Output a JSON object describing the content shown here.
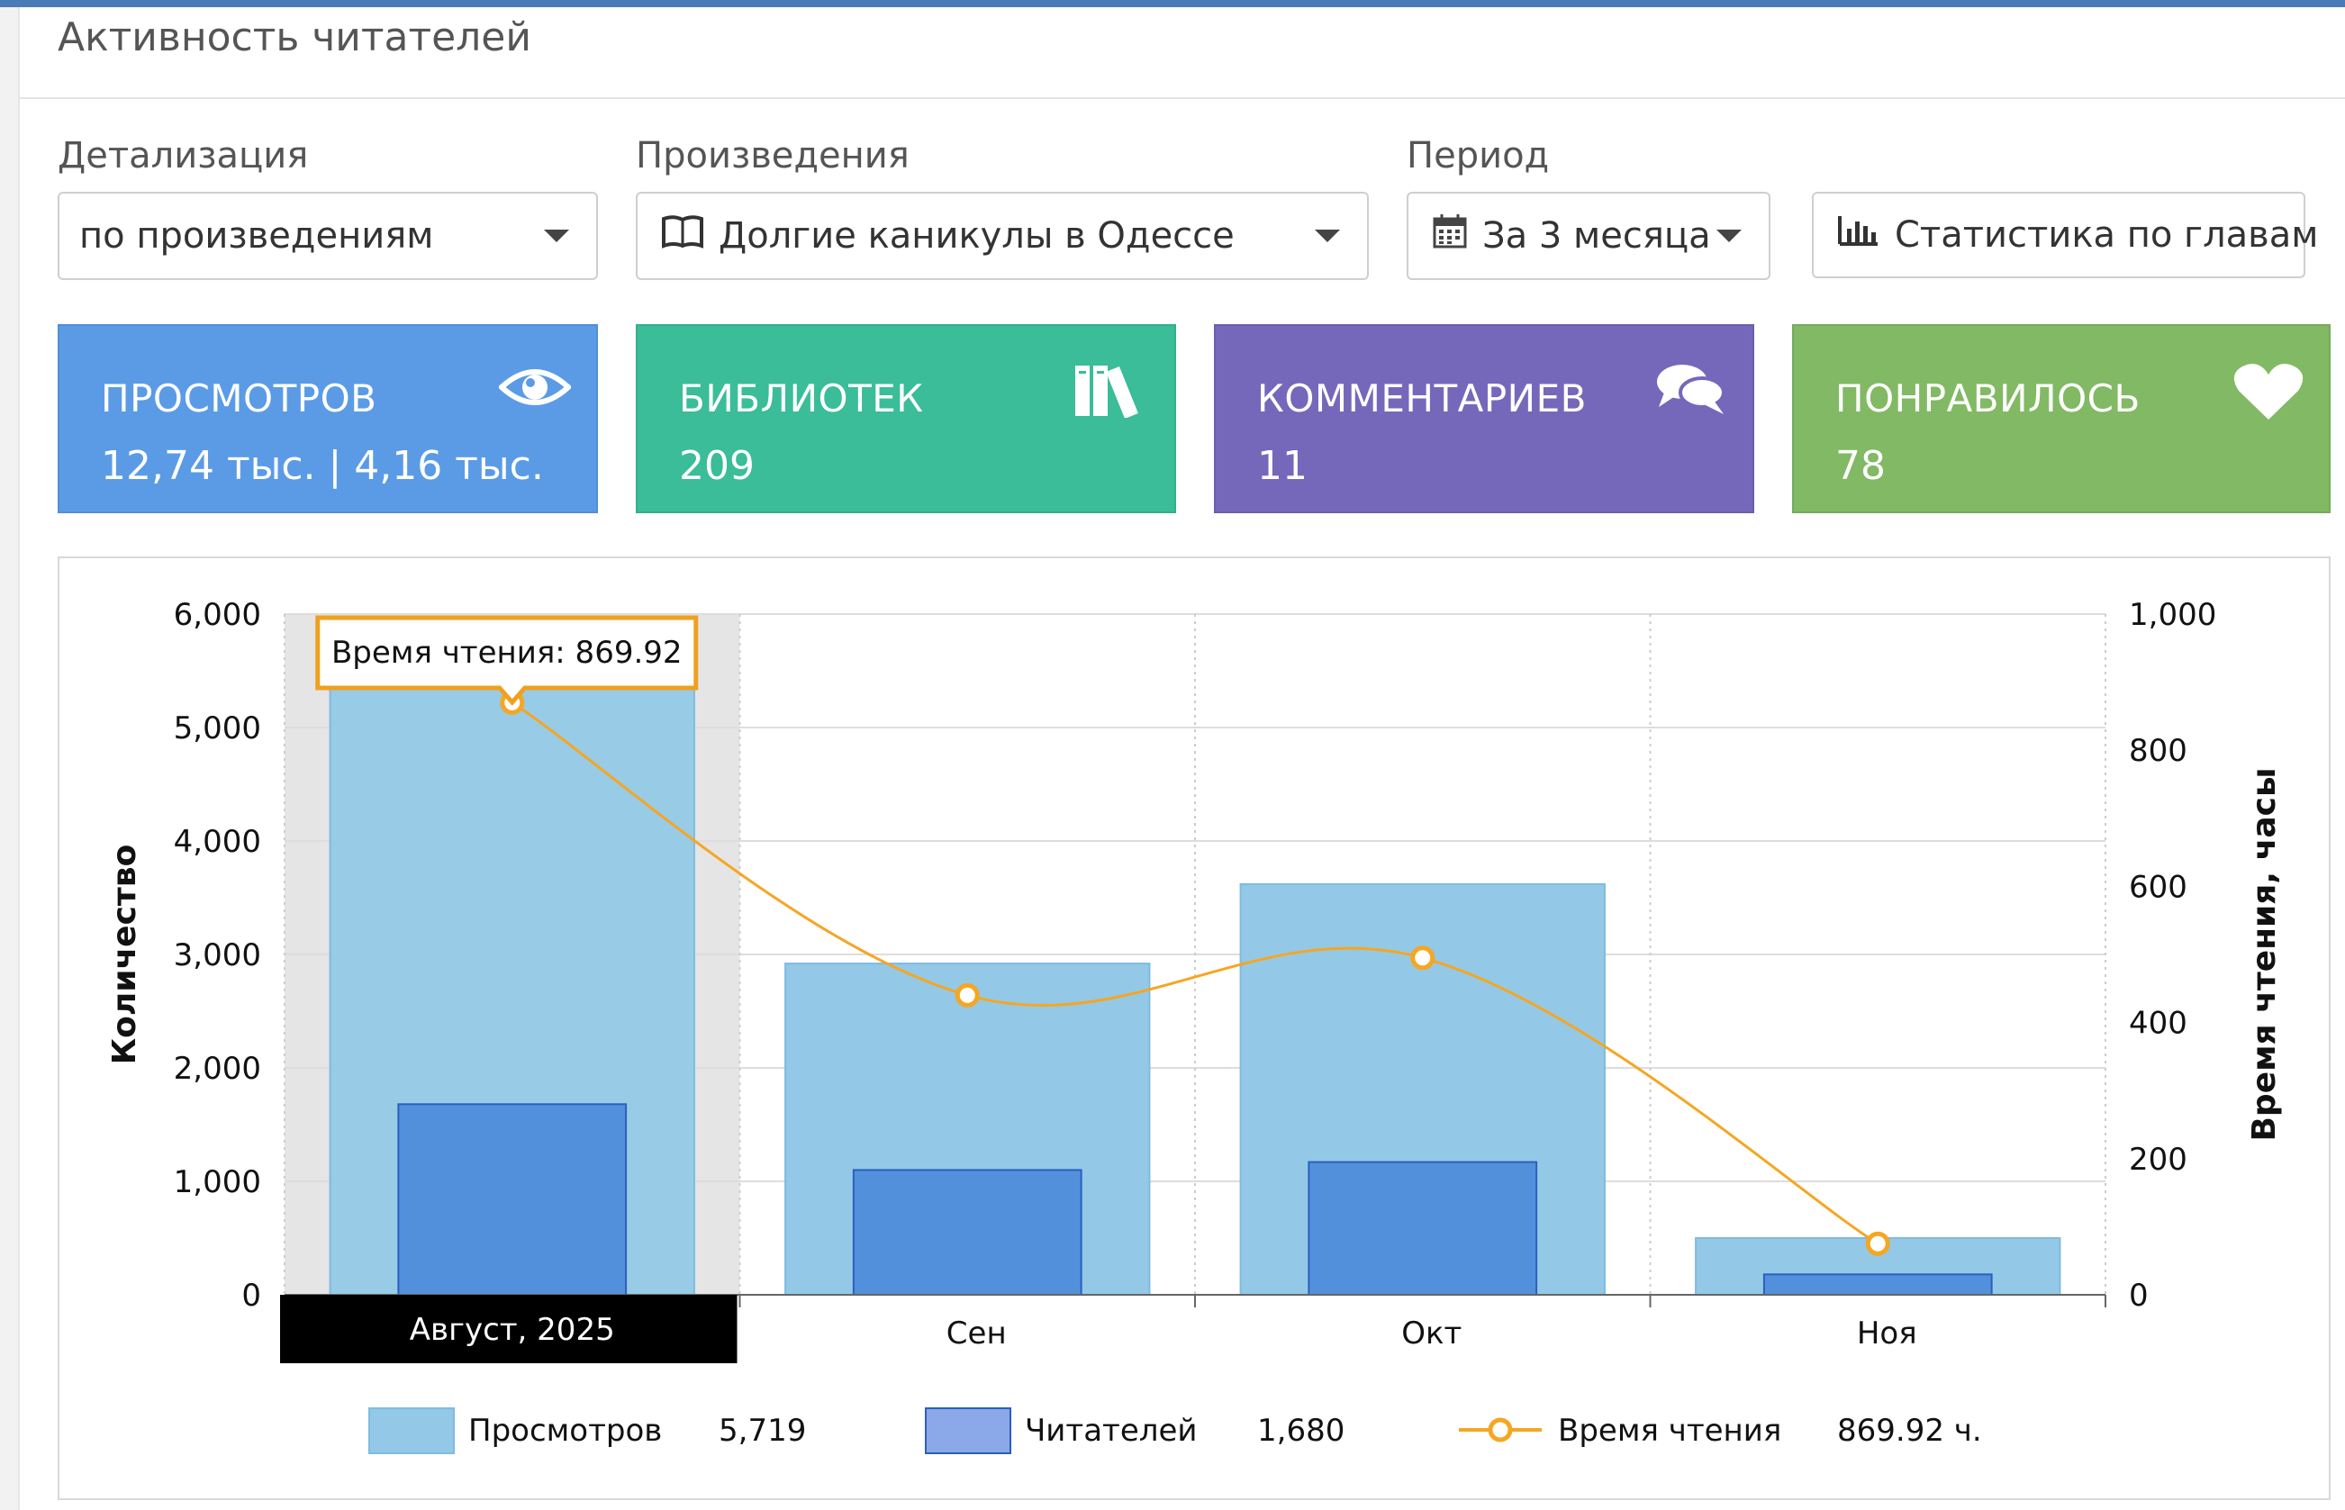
{
  "page": {
    "title": "Активность читателей"
  },
  "filters": {
    "detail": {
      "label": "Детализация",
      "value": "по произведениям"
    },
    "works": {
      "label": "Произведения",
      "value": "Долгие каникулы в Одессе"
    },
    "period": {
      "label": "Период",
      "value": "За 3 месяца"
    },
    "stats_button": "Статистика по главам"
  },
  "cards": [
    {
      "label": "ПРОСМОТРОВ",
      "value": "12,74 тыс. | 4,16 тыс.",
      "color": "#5b9be6",
      "icon": "eye-icon"
    },
    {
      "label": "БИБЛИОТЕК",
      "value": "209",
      "color": "#3abd98",
      "icon": "books-icon"
    },
    {
      "label": "КОММЕНТАРИЕВ",
      "value": "11",
      "color": "#7568bb",
      "icon": "comments-icon"
    },
    {
      "label": "ПОНРАВИЛОСЬ",
      "value": "78",
      "color": "#82b964",
      "icon": "heart-icon"
    }
  ],
  "chart_data": {
    "type": "bar",
    "categories": [
      "Авг",
      "Сен",
      "Окт",
      "Ноя"
    ],
    "series": [
      {
        "name": "Просмотров",
        "type": "bar",
        "axis": "left",
        "color": "#93c9e6",
        "values": [
          5719,
          2920,
          3620,
          500
        ]
      },
      {
        "name": "Читателей",
        "type": "bar",
        "axis": "left",
        "color": "#5290dc",
        "values": [
          1680,
          1100,
          1170,
          180
        ]
      },
      {
        "name": "Время чтения",
        "type": "line",
        "axis": "right",
        "color": "#f5a623",
        "values": [
          869.92,
          440,
          495,
          75
        ]
      }
    ],
    "ylabel": "Количество",
    "ylabel_right": "Время чтения, часы",
    "ylim": [
      0,
      6000
    ],
    "ylim_right": [
      0,
      1000
    ],
    "yticks": [
      "0",
      "1,000",
      "2,000",
      "3,000",
      "4,000",
      "5,000",
      "6,000"
    ],
    "yticks_right": [
      "0",
      "200",
      "400",
      "600",
      "800",
      "1,000"
    ],
    "highlighted_index": 0,
    "highlight_label": "Август, 2025",
    "tooltip": "Время чтения: 869.92",
    "legend": [
      {
        "name": "Просмотров",
        "value": "5,719"
      },
      {
        "name": "Читателей",
        "value": "1,680"
      },
      {
        "name": "Время чтения",
        "value": "869.92 ч."
      }
    ],
    "grid": true
  }
}
